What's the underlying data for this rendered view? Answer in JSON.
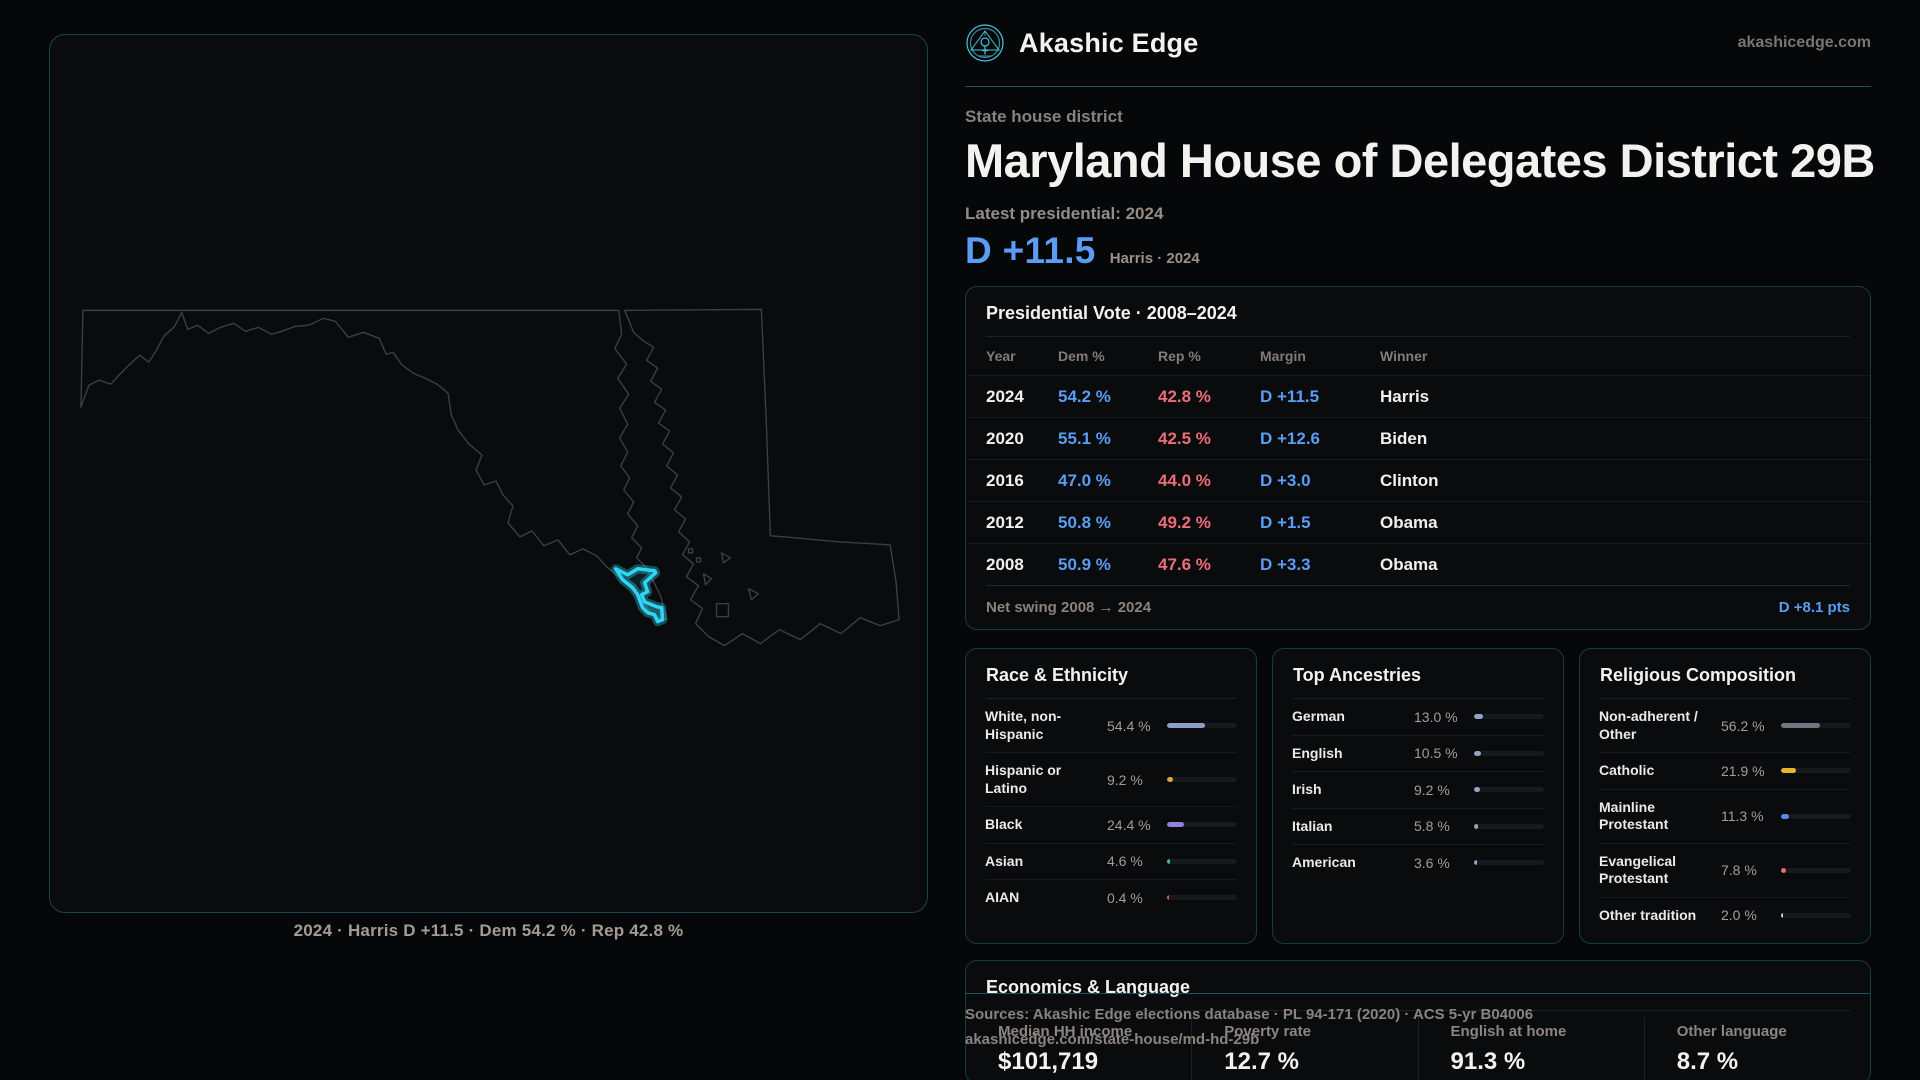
{
  "brand": {
    "name": "Akashic Edge",
    "domain": "akashicedge.com",
    "logo_color": "#49c6dd"
  },
  "header": {
    "kicker": "State house district",
    "title": "Maryland House of Delegates District 29B",
    "latest_label": "Latest presidential: 2024",
    "hero_margin": "D +11.5",
    "hero_context": "Harris · 2024"
  },
  "map": {
    "caption": "2024 · Harris D +11.5 · Dem 54.2 % · Rep 42.8 %",
    "district_color": "#2fd6f4",
    "outline_color": "#3b3e42"
  },
  "presidential": {
    "title": "Presidential Vote · 2008–2024",
    "columns": [
      "Year",
      "Dem %",
      "Rep %",
      "Margin",
      "Winner"
    ],
    "rows": [
      {
        "year": "2024",
        "dem": "54.2 %",
        "rep": "42.8 %",
        "margin": "D +11.5",
        "winner": "Harris"
      },
      {
        "year": "2020",
        "dem": "55.1 %",
        "rep": "42.5 %",
        "margin": "D +12.6",
        "winner": "Biden"
      },
      {
        "year": "2016",
        "dem": "47.0 %",
        "rep": "44.0 %",
        "margin": "D +3.0",
        "winner": "Clinton"
      },
      {
        "year": "2012",
        "dem": "50.8 %",
        "rep": "49.2 %",
        "margin": "D +1.5",
        "winner": "Obama"
      },
      {
        "year": "2008",
        "dem": "50.9 %",
        "rep": "47.6 %",
        "margin": "D +3.3",
        "winner": "Obama"
      }
    ],
    "net_swing_label": "Net swing 2008 → 2024",
    "net_swing_value": "D +8.1 pts"
  },
  "demographics": {
    "panels": [
      {
        "key": "race",
        "title": "Race & Ethnicity",
        "rows": [
          {
            "label": "White, non-Hispanic",
            "value": "54.4 %",
            "pct": 54.4,
            "color": "#8e9fc5"
          },
          {
            "label": "Hispanic or Latino",
            "value": "9.2 %",
            "pct": 9.2,
            "color": "#e2a23c"
          },
          {
            "label": "Black",
            "value": "24.4 %",
            "pct": 24.4,
            "color": "#9181d8"
          },
          {
            "label": "Asian",
            "value": "4.6 %",
            "pct": 4.6,
            "color": "#2fbf8f"
          },
          {
            "label": "AIAN",
            "value": "0.4 %",
            "pct": 0.4,
            "color": "#d0603a"
          }
        ]
      },
      {
        "key": "ancestries",
        "title": "Top Ancestries",
        "rows": [
          {
            "label": "German",
            "value": "13.0 %",
            "pct": 13.0,
            "color": "#8fa6c9"
          },
          {
            "label": "English",
            "value": "10.5 %",
            "pct": 10.5,
            "color": "#8fa6c9"
          },
          {
            "label": "Irish",
            "value": "9.2 %",
            "pct": 9.2,
            "color": "#8fa6c9"
          },
          {
            "label": "Italian",
            "value": "5.8 %",
            "pct": 5.8,
            "color": "#8fa6c9"
          },
          {
            "label": "American",
            "value": "3.6 %",
            "pct": 3.6,
            "color": "#8fa6c9"
          }
        ]
      },
      {
        "key": "religion",
        "title": "Religious Composition",
        "rows": [
          {
            "label": "Non-adherent / Other",
            "value": "56.2 %",
            "pct": 56.2,
            "color": "#6e7683"
          },
          {
            "label": "Catholic",
            "value": "21.9 %",
            "pct": 21.9,
            "color": "#e7b42e"
          },
          {
            "label": "Mainline Protestant",
            "value": "11.3 %",
            "pct": 11.3,
            "color": "#4e8fe6"
          },
          {
            "label": "Evangelical Protestant",
            "value": "7.8 %",
            "pct": 7.8,
            "color": "#e4706e"
          },
          {
            "label": "Other tradition",
            "value": "2.0 %",
            "pct": 2.0,
            "color": "#cfd2d6"
          }
        ]
      }
    ]
  },
  "economics": {
    "title": "Economics & Language",
    "stats": [
      {
        "label": "Median HH income",
        "value": "$101,719"
      },
      {
        "label": "Poverty rate",
        "value": "12.7 %"
      },
      {
        "label": "English at home",
        "value": "91.3 %"
      },
      {
        "label": "Other language",
        "value": "8.7 %"
      }
    ]
  },
  "footer": {
    "line1": "Sources: Akashic Edge elections database · PL 94-171 (2020) · ACS 5-yr B04006",
    "line2": "akashicedge.com/state-house/md-hd-29b"
  }
}
